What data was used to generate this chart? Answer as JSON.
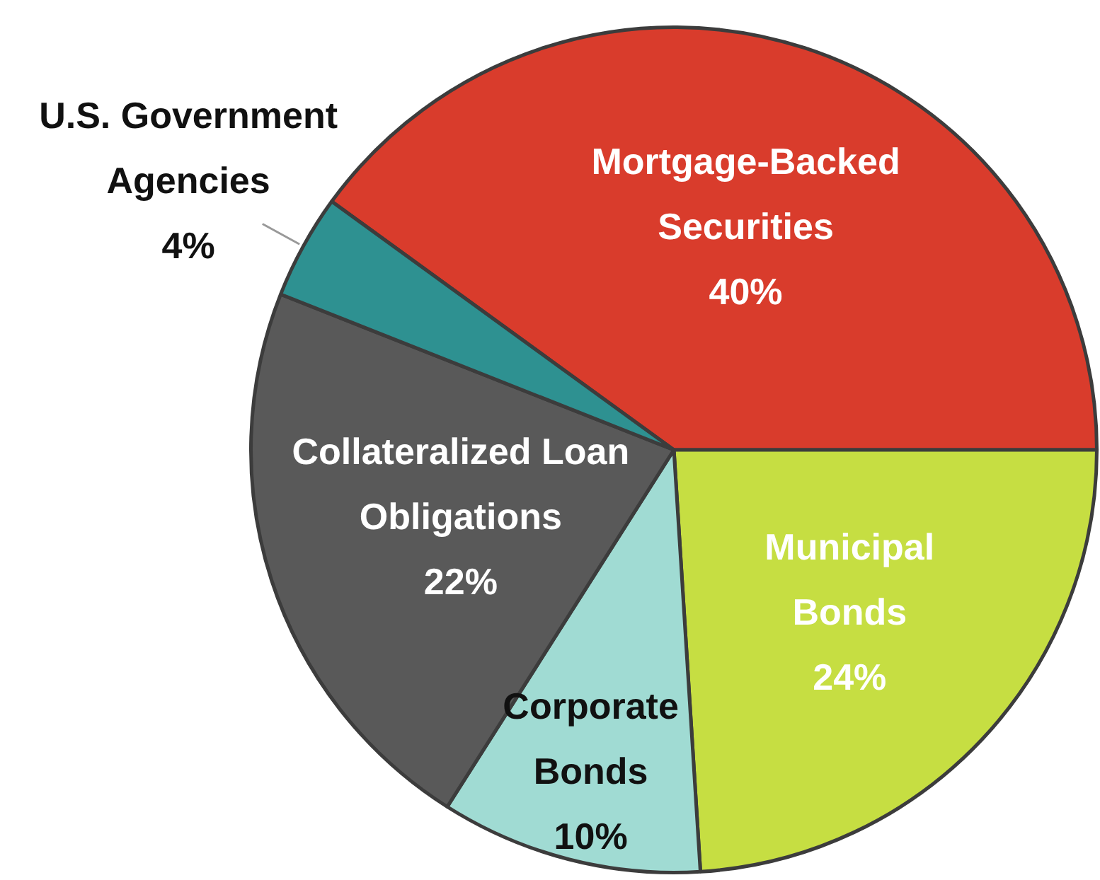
{
  "chart_data": {
    "type": "pie",
    "categories": [
      "Mortgage-Backed Securities",
      "Municipal Bonds",
      "Corporate Bonds",
      "Collateralized Loan Obligations",
      "U.S. Government Agencies"
    ],
    "values": [
      40,
      24,
      10,
      22,
      4
    ],
    "value_labels": [
      "40%",
      "24%",
      "10%",
      "22%",
      "4%"
    ],
    "colors": [
      "#d93c2c",
      "#c6de42",
      "#a0dbd3",
      "#595959",
      "#2e9191"
    ],
    "legend": false
  }
}
